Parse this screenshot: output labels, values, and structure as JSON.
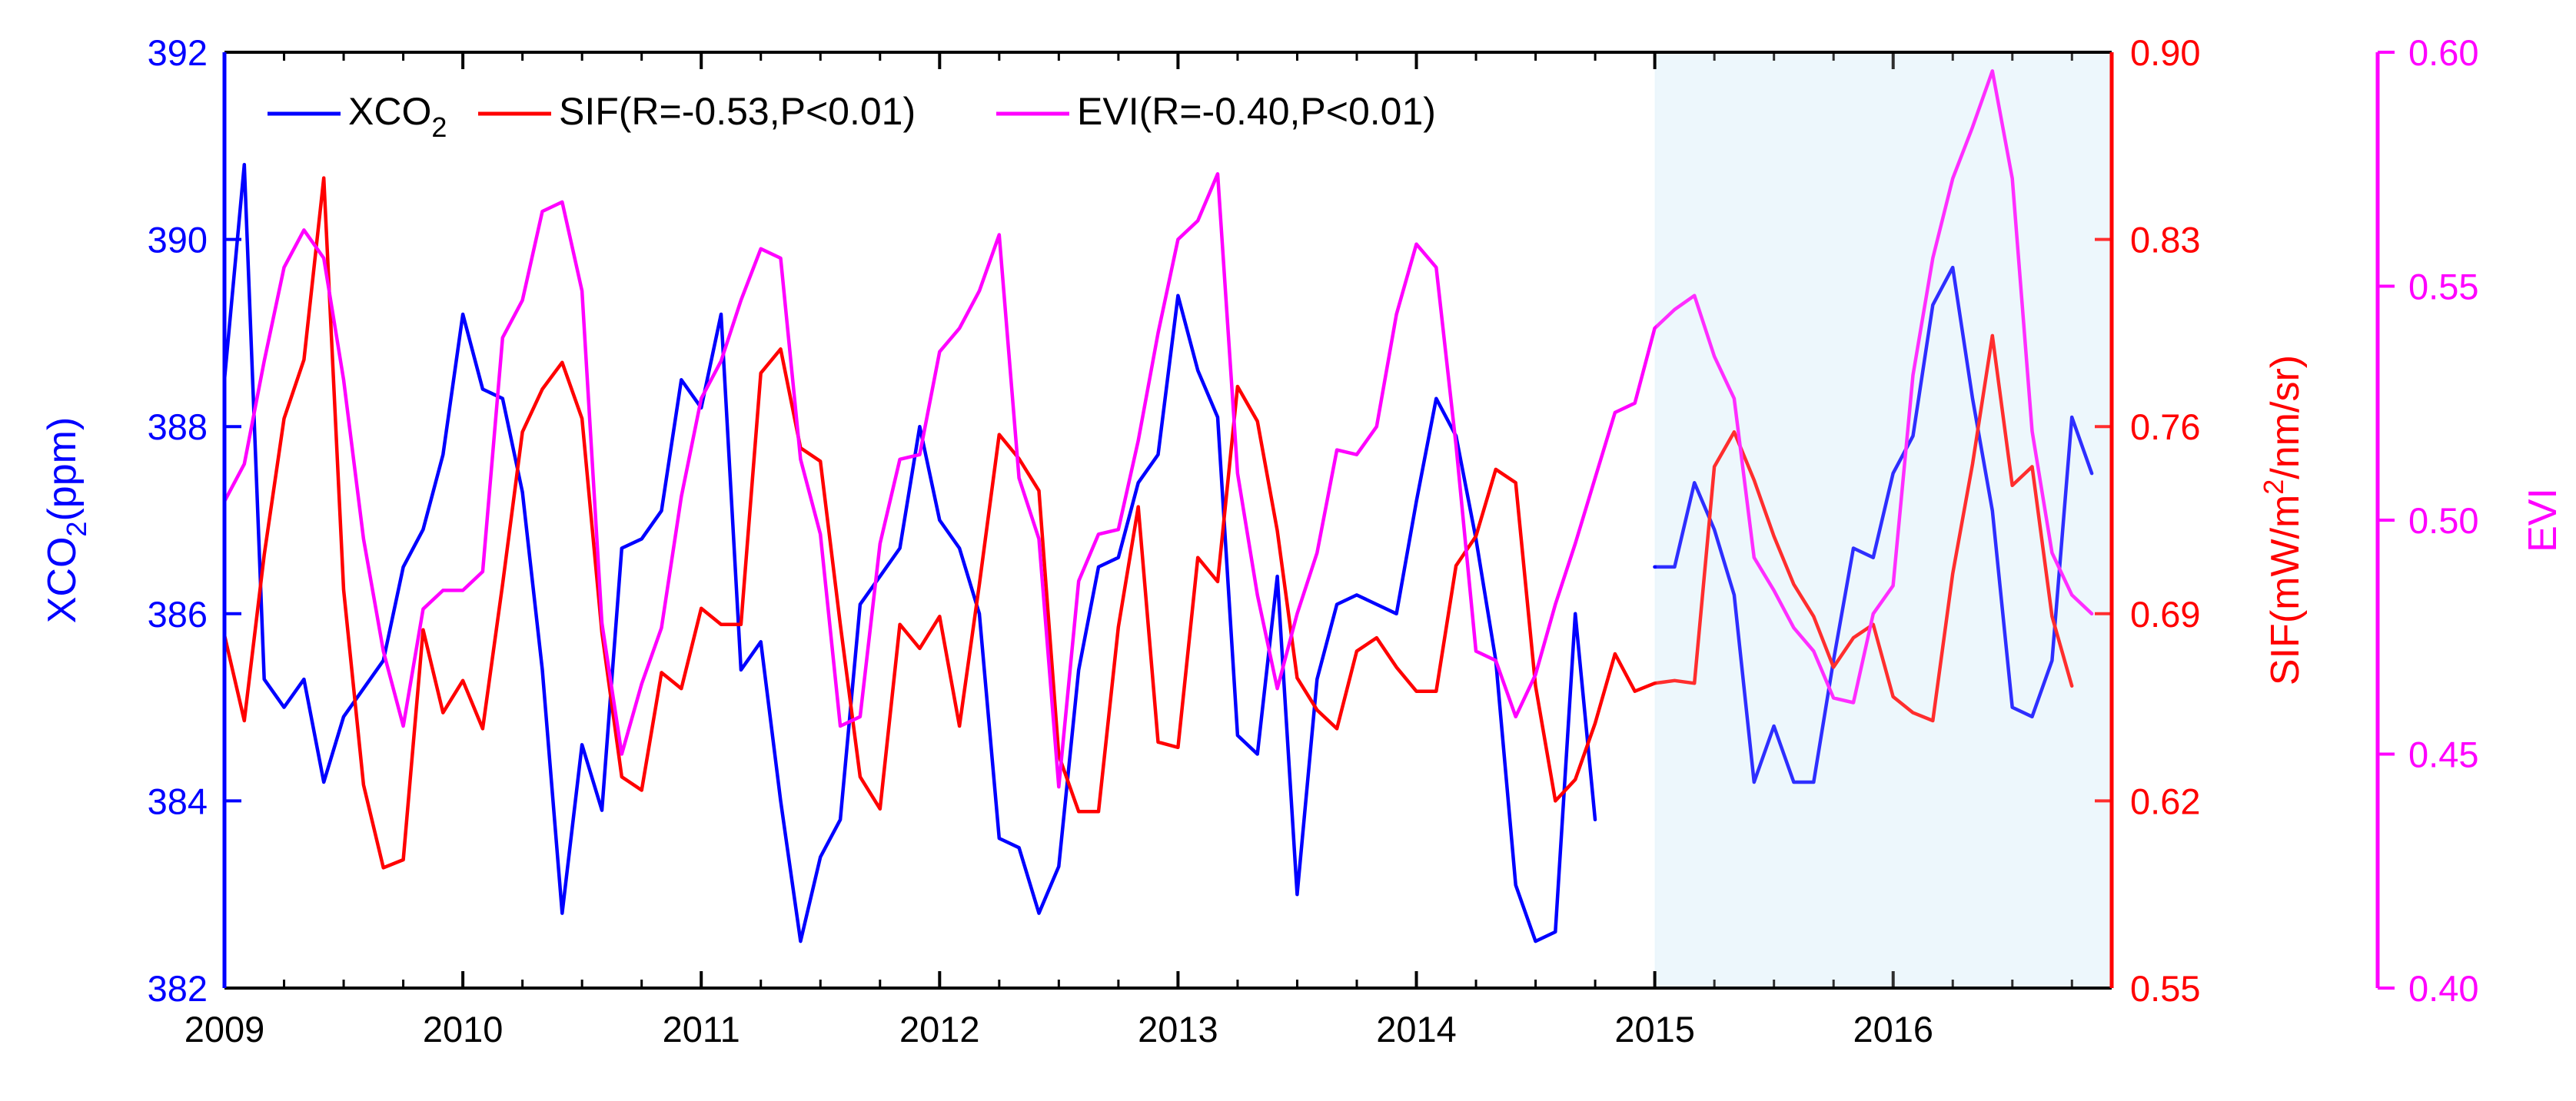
{
  "chart_data": {
    "type": "line",
    "title": "",
    "xlabel": "",
    "xlim": [
      2009.0,
      2016.9167
    ],
    "x_ticks": [
      "2009",
      "2010",
      "2011",
      "2012",
      "2013",
      "2014",
      "2015",
      "2016"
    ],
    "shaded_region": {
      "from": 2015.0,
      "to": 2016.9167,
      "color": "#eaf6fc"
    },
    "axes": {
      "left": {
        "label_main": "XCO",
        "label_sub": "2",
        "label_rest": "(ppm)",
        "color": "#0000ff",
        "ylim": [
          382,
          392
        ],
        "ticks": [
          "382",
          "384",
          "386",
          "388",
          "390",
          "392"
        ]
      },
      "right1": {
        "label_main": "SIF(mW/m",
        "label_sup": "2",
        "label_rest": "/nm/sr)",
        "color": "#ff0000",
        "ylim": [
          0.55,
          0.9
        ],
        "ticks": [
          "0.55",
          "0.62",
          "0.69",
          "0.76",
          "0.83",
          "0.90"
        ]
      },
      "right2": {
        "label": "EVI",
        "color": "#ff00ff",
        "ylim": [
          0.4,
          0.6
        ],
        "ticks": [
          "0.40",
          "0.45",
          "0.50",
          "0.55",
          "0.60"
        ]
      }
    },
    "legend": {
      "position": "top-left",
      "entries": [
        {
          "main": "XCO",
          "sub": "2",
          "rest": "",
          "color": "#0000ff"
        },
        {
          "main": "SIF(R=-0.53,P<0.01)",
          "sub": "",
          "rest": "",
          "color": "#ff0000"
        },
        {
          "main": "EVI(R=-0.40,P<0.01)",
          "sub": "",
          "rest": "",
          "color": "#ff00ff"
        }
      ]
    },
    "series": [
      {
        "name": "XCO2",
        "axis": "left",
        "color": "#0000ff",
        "start": 2009.0,
        "step": 0.08333,
        "values": [
          388.5,
          390.8,
          385.3,
          385.0,
          385.3,
          384.2,
          384.9,
          385.2,
          385.5,
          386.5,
          386.9,
          387.7,
          389.2,
          388.4,
          388.3,
          387.3,
          385.4,
          382.8,
          384.6,
          383.9,
          386.7,
          386.8,
          387.1,
          388.5,
          388.2,
          389.2,
          385.4,
          385.7,
          384.0,
          382.5,
          383.4,
          383.8,
          386.1,
          386.4,
          386.7,
          388.0,
          387.0,
          386.7,
          386.0,
          383.6,
          383.5,
          382.8,
          383.3,
          385.4,
          386.5,
          386.6,
          387.4,
          387.7,
          389.4,
          388.6,
          388.1,
          384.7,
          384.5,
          386.4,
          383.0,
          385.3,
          386.1,
          386.2,
          386.1,
          386.0,
          387.2,
          388.3,
          387.9,
          386.8,
          385.5,
          383.1,
          382.5,
          382.6,
          386.0,
          383.8,
          null,
          null,
          386.5,
          386.5,
          387.4,
          386.9,
          386.2,
          384.2,
          384.8,
          384.2,
          384.2,
          385.5,
          386.7,
          386.6,
          387.5,
          387.9,
          389.3,
          389.7,
          388.3,
          387.1,
          385.0,
          384.9,
          385.5,
          388.1,
          387.5
        ]
      },
      {
        "name": "SIF",
        "axis": "right1",
        "color": "#ff0000",
        "start": 2009.0,
        "step": 0.08333,
        "values": [
          0.682,
          0.65,
          0.712,
          0.763,
          0.785,
          0.853,
          0.699,
          0.626,
          0.595,
          0.598,
          0.684,
          0.653,
          0.665,
          0.647,
          0.701,
          0.758,
          0.774,
          0.784,
          0.763,
          0.683,
          0.629,
          0.624,
          0.668,
          0.662,
          0.692,
          0.686,
          0.686,
          0.78,
          0.789,
          0.752,
          0.747,
          0.686,
          0.629,
          0.617,
          0.686,
          0.677,
          0.689,
          0.648,
          0.701,
          0.757,
          0.748,
          0.736,
          0.637,
          0.616,
          0.616,
          0.685,
          0.73,
          0.642,
          0.64,
          0.711,
          0.702,
          0.775,
          0.762,
          0.721,
          0.666,
          0.654,
          0.647,
          0.676,
          0.681,
          0.67,
          0.661,
          0.661,
          0.708,
          0.719,
          0.744,
          0.739,
          0.663,
          0.62,
          0.628,
          0.649,
          0.675,
          0.661,
          0.664,
          0.665,
          0.664,
          0.745,
          0.758,
          0.74,
          0.719,
          0.701,
          0.689,
          0.67,
          0.681,
          0.686,
          0.659,
          0.653,
          0.65,
          0.705,
          0.746,
          0.794,
          0.738,
          0.745,
          0.689,
          0.663
        ]
      },
      {
        "name": "EVI",
        "axis": "right2",
        "color": "#ff00ff",
        "start": 2009.0,
        "step": 0.08333,
        "values": [
          0.504,
          0.512,
          0.534,
          0.554,
          0.562,
          0.556,
          0.53,
          0.496,
          0.472,
          0.456,
          0.481,
          0.485,
          0.485,
          0.489,
          0.539,
          0.547,
          0.566,
          0.568,
          0.549,
          0.478,
          0.45,
          0.465,
          0.477,
          0.505,
          0.526,
          0.534,
          0.547,
          0.558,
          0.556,
          0.513,
          0.497,
          0.456,
          0.458,
          0.495,
          0.513,
          0.514,
          0.536,
          0.541,
          0.549,
          0.561,
          0.509,
          0.496,
          0.443,
          0.487,
          0.497,
          0.498,
          0.517,
          0.54,
          0.56,
          0.564,
          0.574,
          0.51,
          0.484,
          0.464,
          0.48,
          0.493,
          0.515,
          0.514,
          0.52,
          0.544,
          0.559,
          0.554,
          0.516,
          0.472,
          0.47,
          0.458,
          0.467,
          0.482,
          0.495,
          0.509,
          0.523,
          0.525,
          0.541,
          0.545,
          0.548,
          0.535,
          0.526,
          0.492,
          0.485,
          0.477,
          0.472,
          0.462,
          0.461,
          0.48,
          0.486,
          0.531,
          0.556,
          0.573,
          0.584,
          0.596,
          0.573,
          0.519,
          0.493,
          0.484,
          0.48
        ]
      }
    ]
  }
}
